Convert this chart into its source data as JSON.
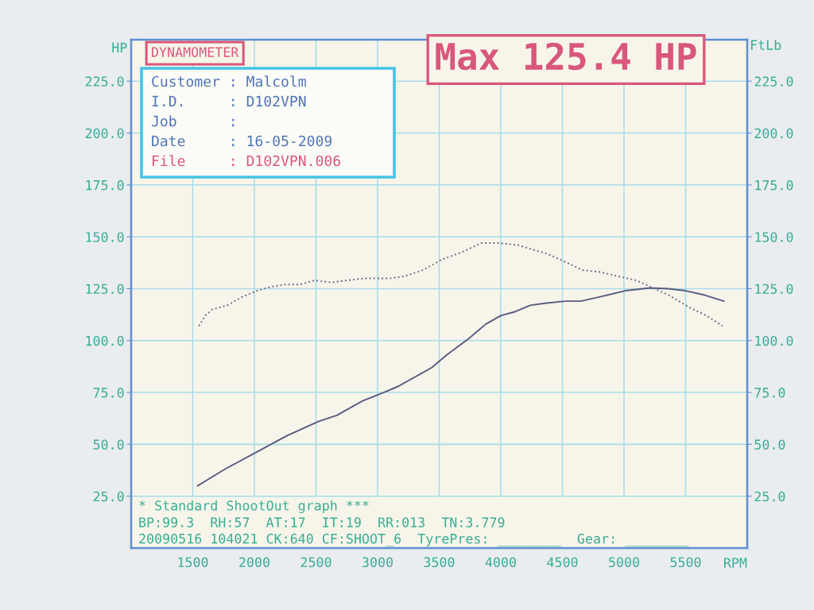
{
  "chart_data": {
    "type": "line",
    "title": "DYNAMOMETER",
    "xlabel": "RPM",
    "ylabel": "HP",
    "y2label": "FtLb",
    "xlim": [
      1000,
      6000
    ],
    "xticks": [
      1500,
      2000,
      2500,
      3000,
      3500,
      4000,
      4500,
      5000,
      5500
    ],
    "ylim": [
      0,
      245
    ],
    "yticks": [
      {
        "value": 25,
        "label": "25.0"
      },
      {
        "value": 50,
        "label": "50.0"
      },
      {
        "value": 75,
        "label": "75.0"
      },
      {
        "value": 100,
        "label": "100.0"
      },
      {
        "value": 125,
        "label": "125.0"
      },
      {
        "value": 150,
        "label": "150.0"
      },
      {
        "value": 175,
        "label": "175.0"
      },
      {
        "value": 200,
        "label": "200.0"
      },
      {
        "value": 225,
        "label": "225.0"
      }
    ],
    "y2lim": [
      0,
      245
    ],
    "y2ticks": [
      {
        "value": 25,
        "label": "25.0"
      },
      {
        "value": 50,
        "label": "50.0"
      },
      {
        "value": 75,
        "label": "75.0"
      },
      {
        "value": 100,
        "label": "100.0"
      },
      {
        "value": 125,
        "label": "125.0"
      },
      {
        "value": 150,
        "label": "150.0"
      },
      {
        "value": 175,
        "label": "175.0"
      },
      {
        "value": 200,
        "label": "200.0"
      },
      {
        "value": 225,
        "label": "225.0"
      }
    ],
    "grid": true,
    "series": [
      {
        "color": "#5a5a80",
        "line_style": "solid",
        "x": [
          1540,
          1760,
          2010,
          2260,
          2520,
          2670,
          2880,
          3050,
          3170,
          3350,
          3440,
          3560,
          3740,
          3880,
          4000,
          4120,
          4240,
          4360,
          4530,
          4650,
          4800,
          5010,
          5210,
          5360,
          5500,
          5650,
          5810
        ],
        "values": [
          30,
          38,
          46,
          54,
          61,
          64,
          71,
          75,
          78,
          84,
          87,
          93,
          101,
          108,
          112,
          114,
          117,
          118,
          119,
          119,
          121,
          124,
          125.4,
          125,
          124,
          122,
          119
        ]
      },
      {
        "color": "#6a6a88",
        "line_style": "dotted",
        "x": [
          1550,
          1600,
          1660,
          1780,
          1900,
          2020,
          2140,
          2250,
          2370,
          2490,
          2630,
          2750,
          2900,
          3050,
          3100,
          3220,
          3370,
          3520,
          3700,
          3840,
          3990,
          4140,
          4250,
          4370,
          4520,
          4660,
          4810,
          4950,
          5100,
          5210,
          5360,
          5530,
          5670,
          5800
        ],
        "values": [
          107,
          112,
          115,
          117,
          121,
          124,
          126,
          127,
          127,
          129,
          128,
          129,
          130,
          130,
          130,
          131,
          134,
          139,
          143,
          147,
          147,
          146,
          144,
          142,
          138,
          134,
          133,
          131,
          129,
          126,
          122,
          116,
          112,
          107
        ]
      }
    ],
    "annotations": [
      "Max 125.4 HP",
      "Customer : Malcolm",
      "I.D.     : D102VPN",
      "Job      :",
      "Date     : 16-05-2009",
      "File     : D102VPN.006",
      "* Standard ShootOut graph ***",
      "BP:99.3  RH:57  AT:17  IT:19  RR:013  TN:3.779",
      "20090516 104021 CK:640 CF:SHOOT_6  TyrePres: ________  Gear: ________"
    ]
  }
}
